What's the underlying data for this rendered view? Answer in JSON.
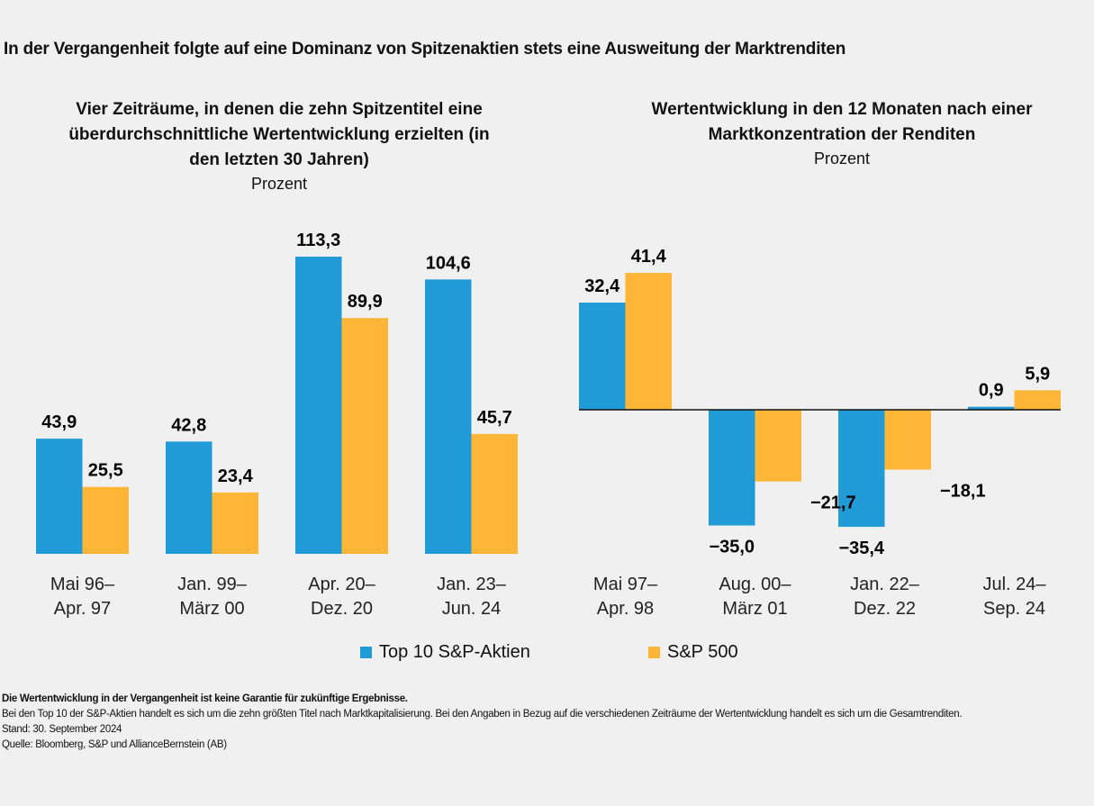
{
  "title": "In der Vergangenheit folgte auf eine Dominanz von Spitzenaktien stets eine Ausweitung der Marktrenditen",
  "colors": {
    "top10": "#209BD7",
    "sp500": "#FFB636",
    "background": "#F0F0F0"
  },
  "legend": [
    {
      "name": "Top 10 S&P-Aktien",
      "color": "#209BD7"
    },
    {
      "name": "S&P 500",
      "color": "#FFB636"
    }
  ],
  "chart_data": [
    {
      "type": "bar",
      "title": "Vier Zeiträume, in denen die zehn Spitzentitel eine überdurchschnittliche Wertentwicklung erzielten (in den letzten 30 Jahren)",
      "ylabel": "Prozent",
      "categories": [
        [
          "Mai 96–",
          "Apr. 97"
        ],
        [
          "Jan. 99–",
          "März 00"
        ],
        [
          "Apr. 20–",
          "Dez. 20"
        ],
        [
          "Jan. 23–",
          "Jun. 24"
        ]
      ],
      "series": [
        {
          "name": "Top 10 S&P-Aktien",
          "values": [
            43.9,
            42.8,
            113.3,
            104.6
          ],
          "labels": [
            "43,9",
            "42,8",
            "113,3",
            "104,6"
          ]
        },
        {
          "name": "S&P 500",
          "values": [
            25.5,
            23.4,
            89.9,
            45.7
          ],
          "labels": [
            "25,5",
            "23,4",
            "89,9",
            "45,7"
          ]
        }
      ],
      "ylim": [
        0,
        113.3
      ],
      "grid": false,
      "legend": "bottom"
    },
    {
      "type": "bar",
      "title": "Wertentwicklung in den 12 Monaten nach einer Marktkonzentration der Renditen",
      "ylabel": "Prozent",
      "categories": [
        [
          "Mai 97–",
          "Apr. 98"
        ],
        [
          "Aug. 00–",
          "März 01"
        ],
        [
          "Jan. 22–",
          "Dez. 22"
        ],
        [
          "Jul. 24–",
          "Sep. 24"
        ]
      ],
      "series": [
        {
          "name": "Top 10 S&P-Aktien",
          "values": [
            32.4,
            -35.0,
            -35.4,
            0.9
          ],
          "labels": [
            "32,4",
            "−35,0",
            "−35,4",
            "0,9"
          ]
        },
        {
          "name": "S&P 500",
          "values": [
            41.4,
            -21.7,
            -18.1,
            5.9
          ],
          "labels": [
            "41,4",
            "−21,7",
            "−18,1",
            "5,9"
          ]
        }
      ],
      "ylim": [
        -35.4,
        41.4
      ],
      "grid": false,
      "legend": "bottom"
    }
  ],
  "notes": {
    "disclaimer": "Die Wertentwicklung in der Vergangenheit ist keine Garantie für zukünftige Ergebnisse.",
    "definition": "Bei den Top 10 der S&P-Aktien handelt es sich um die zehn größten Titel nach Marktkapitalisierung.  Bei den Angaben in Bezug auf die verschiedenen Zeiträume der Wertentwicklung handelt es sich um die Gesamtrenditen.",
    "date": "Stand: 30. September 2024",
    "source": "Quelle: Bloomberg, S&P und AllianceBernstein (AB)"
  }
}
